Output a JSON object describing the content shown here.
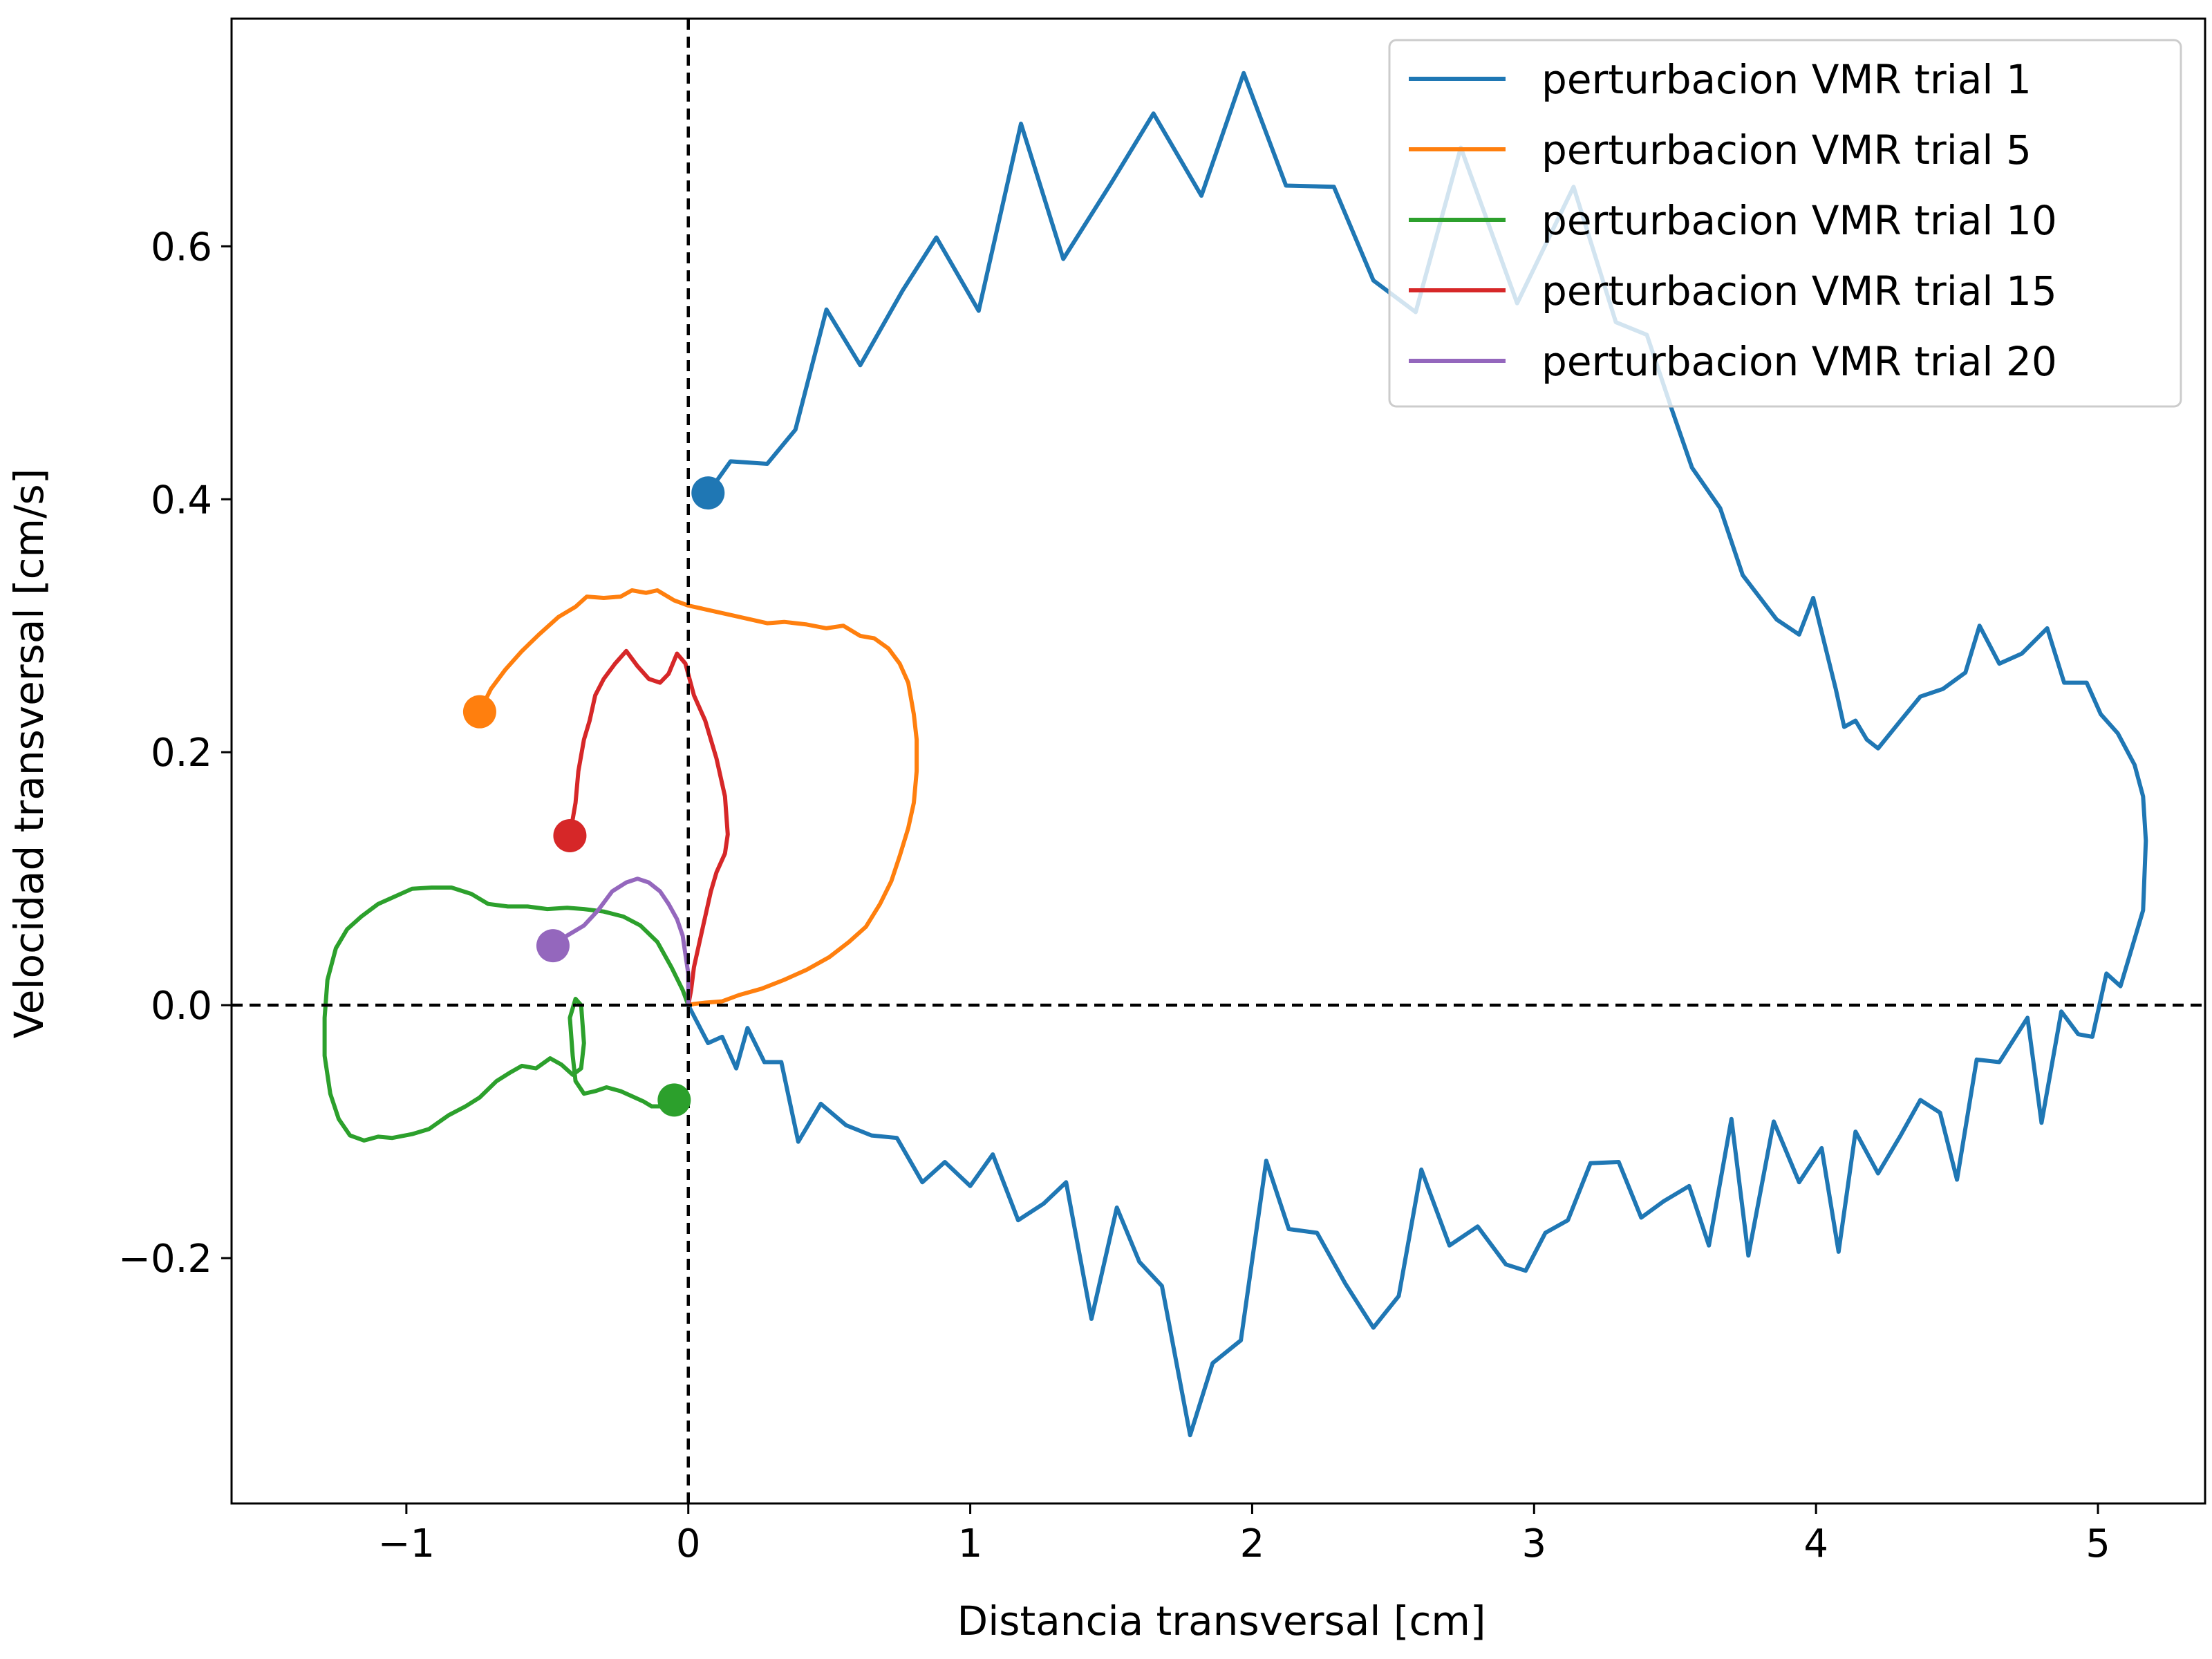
{
  "chart_data": {
    "type": "line",
    "title": "",
    "xlabel": "Distancia transversal [cm]",
    "ylabel": "Velocidad transversal [cm/s]",
    "xlim": [
      -1.62,
      5.38
    ],
    "ylim": [
      -0.394,
      0.78
    ],
    "xticks": [
      -1,
      0,
      1,
      2,
      3,
      4,
      5
    ],
    "xtick_labels": [
      "−1",
      "0",
      "1",
      "2",
      "3",
      "4",
      "5"
    ],
    "yticks": [
      -0.2,
      0.0,
      0.2,
      0.4,
      0.6
    ],
    "ytick_labels": [
      "−0.2",
      "0.0",
      "0.2",
      "0.4",
      "0.6"
    ],
    "grid": false,
    "legend_position": "top-right",
    "reference_lines": {
      "x": 0,
      "y": 0,
      "style": "dashed",
      "color": "#000000"
    },
    "series": [
      {
        "name": "perturbacion VMR trial 1",
        "color": "#1f77b4",
        "start_marker": [
          0.07,
          0.405
        ],
        "points": [
          [
            0.07,
            0.405
          ],
          [
            0.15,
            0.43
          ],
          [
            0.28,
            0.428
          ],
          [
            0.38,
            0.455
          ],
          [
            0.49,
            0.55
          ],
          [
            0.61,
            0.506
          ],
          [
            0.76,
            0.565
          ],
          [
            0.88,
            0.607
          ],
          [
            1.03,
            0.549
          ],
          [
            1.18,
            0.697
          ],
          [
            1.33,
            0.59
          ],
          [
            1.5,
            0.65
          ],
          [
            1.65,
            0.705
          ],
          [
            1.82,
            0.64
          ],
          [
            1.97,
            0.737
          ],
          [
            2.12,
            0.648
          ],
          [
            2.29,
            0.647
          ],
          [
            2.43,
            0.573
          ],
          [
            2.58,
            0.548
          ],
          [
            2.74,
            0.678
          ],
          [
            2.94,
            0.555
          ],
          [
            3.14,
            0.647
          ],
          [
            3.29,
            0.54
          ],
          [
            3.4,
            0.53
          ],
          [
            3.49,
            0.47
          ],
          [
            3.56,
            0.425
          ],
          [
            3.66,
            0.393
          ],
          [
            3.74,
            0.34
          ],
          [
            3.86,
            0.305
          ],
          [
            3.94,
            0.293
          ],
          [
            3.99,
            0.322
          ],
          [
            4.07,
            0.25
          ],
          [
            4.1,
            0.22
          ],
          [
            4.14,
            0.225
          ],
          [
            4.18,
            0.21
          ],
          [
            4.22,
            0.203
          ],
          [
            4.3,
            0.225
          ],
          [
            4.37,
            0.244
          ],
          [
            4.45,
            0.25
          ],
          [
            4.53,
            0.263
          ],
          [
            4.58,
            0.3
          ],
          [
            4.65,
            0.27
          ],
          [
            4.73,
            0.278
          ],
          [
            4.82,
            0.298
          ],
          [
            4.88,
            0.255
          ],
          [
            4.96,
            0.255
          ],
          [
            5.01,
            0.23
          ],
          [
            5.07,
            0.215
          ],
          [
            5.13,
            0.19
          ],
          [
            5.16,
            0.165
          ],
          [
            5.17,
            0.13
          ],
          [
            5.16,
            0.075
          ],
          [
            5.12,
            0.045
          ],
          [
            5.08,
            0.015
          ],
          [
            5.03,
            0.025
          ],
          [
            4.98,
            -0.025
          ],
          [
            4.93,
            -0.023
          ],
          [
            4.87,
            -0.005
          ],
          [
            4.8,
            -0.093
          ],
          [
            4.75,
            -0.01
          ],
          [
            4.65,
            -0.045
          ],
          [
            4.57,
            -0.043
          ],
          [
            4.5,
            -0.138
          ],
          [
            4.44,
            -0.085
          ],
          [
            4.37,
            -0.075
          ],
          [
            4.3,
            -0.103
          ],
          [
            4.22,
            -0.133
          ],
          [
            4.14,
            -0.1
          ],
          [
            4.08,
            -0.195
          ],
          [
            4.02,
            -0.113
          ],
          [
            3.94,
            -0.14
          ],
          [
            3.85,
            -0.092
          ],
          [
            3.76,
            -0.198
          ],
          [
            3.7,
            -0.09
          ],
          [
            3.62,
            -0.19
          ],
          [
            3.55,
            -0.143
          ],
          [
            3.46,
            -0.155
          ],
          [
            3.38,
            -0.168
          ],
          [
            3.3,
            -0.124
          ],
          [
            3.2,
            -0.125
          ],
          [
            3.12,
            -0.17
          ],
          [
            3.04,
            -0.18
          ],
          [
            2.97,
            -0.21
          ],
          [
            2.9,
            -0.205
          ],
          [
            2.8,
            -0.175
          ],
          [
            2.7,
            -0.19
          ],
          [
            2.6,
            -0.13
          ],
          [
            2.52,
            -0.23
          ],
          [
            2.43,
            -0.255
          ],
          [
            2.33,
            -0.22
          ],
          [
            2.23,
            -0.18
          ],
          [
            2.13,
            -0.177
          ],
          [
            2.05,
            -0.123
          ],
          [
            1.96,
            -0.265
          ],
          [
            1.86,
            -0.283
          ],
          [
            1.78,
            -0.34
          ],
          [
            1.68,
            -0.222
          ],
          [
            1.6,
            -0.203
          ],
          [
            1.52,
            -0.16
          ],
          [
            1.43,
            -0.248
          ],
          [
            1.34,
            -0.14
          ],
          [
            1.26,
            -0.157
          ],
          [
            1.17,
            -0.17
          ],
          [
            1.08,
            -0.118
          ],
          [
            1.0,
            -0.143
          ],
          [
            0.91,
            -0.124
          ],
          [
            0.83,
            -0.14
          ],
          [
            0.74,
            -0.105
          ],
          [
            0.65,
            -0.103
          ],
          [
            0.56,
            -0.095
          ],
          [
            0.47,
            -0.078
          ],
          [
            0.39,
            -0.108
          ],
          [
            0.33,
            -0.045
          ],
          [
            0.27,
            -0.045
          ],
          [
            0.21,
            -0.018
          ],
          [
            0.17,
            -0.05
          ],
          [
            0.12,
            -0.025
          ],
          [
            0.07,
            -0.03
          ],
          [
            0.0,
            0.0
          ]
        ]
      },
      {
        "name": "perturbacion VMR trial 5",
        "color": "#ff7f0e",
        "start_marker": [
          -0.74,
          0.232
        ],
        "points": [
          [
            -0.74,
            0.232
          ],
          [
            -0.7,
            0.25
          ],
          [
            -0.65,
            0.265
          ],
          [
            -0.59,
            0.28
          ],
          [
            -0.53,
            0.293
          ],
          [
            -0.46,
            0.307
          ],
          [
            -0.4,
            0.315
          ],
          [
            -0.36,
            0.323
          ],
          [
            -0.3,
            0.322
          ],
          [
            -0.24,
            0.323
          ],
          [
            -0.2,
            0.328
          ],
          [
            -0.15,
            0.326
          ],
          [
            -0.11,
            0.328
          ],
          [
            -0.05,
            0.32
          ],
          [
            0.0,
            0.316
          ],
          [
            0.08,
            0.312
          ],
          [
            0.16,
            0.308
          ],
          [
            0.22,
            0.305
          ],
          [
            0.28,
            0.302
          ],
          [
            0.34,
            0.303
          ],
          [
            0.42,
            0.301
          ],
          [
            0.49,
            0.298
          ],
          [
            0.55,
            0.3
          ],
          [
            0.61,
            0.292
          ],
          [
            0.66,
            0.29
          ],
          [
            0.71,
            0.282
          ],
          [
            0.75,
            0.27
          ],
          [
            0.78,
            0.255
          ],
          [
            0.8,
            0.23
          ],
          [
            0.81,
            0.21
          ],
          [
            0.81,
            0.185
          ],
          [
            0.8,
            0.16
          ],
          [
            0.78,
            0.14
          ],
          [
            0.75,
            0.118
          ],
          [
            0.72,
            0.098
          ],
          [
            0.68,
            0.08
          ],
          [
            0.63,
            0.062
          ],
          [
            0.57,
            0.05
          ],
          [
            0.5,
            0.038
          ],
          [
            0.42,
            0.028
          ],
          [
            0.34,
            0.02
          ],
          [
            0.26,
            0.013
          ],
          [
            0.18,
            0.008
          ],
          [
            0.12,
            0.003
          ],
          [
            0.06,
            0.002
          ],
          [
            0.02,
            0.001
          ],
          [
            0.0,
            0.0
          ]
        ]
      },
      {
        "name": "perturbacion VMR trial 10",
        "color": "#2ca02c",
        "start_marker": [
          -0.05,
          -0.075
        ],
        "points": [
          [
            -0.05,
            -0.075
          ],
          [
            -0.09,
            -0.08
          ],
          [
            -0.13,
            -0.08
          ],
          [
            -0.16,
            -0.076
          ],
          [
            -0.2,
            -0.072
          ],
          [
            -0.24,
            -0.068
          ],
          [
            -0.29,
            -0.065
          ],
          [
            -0.33,
            -0.068
          ],
          [
            -0.37,
            -0.07
          ],
          [
            -0.4,
            -0.06
          ],
          [
            -0.41,
            -0.04
          ],
          [
            -0.42,
            -0.01
          ],
          [
            -0.4,
            0.005
          ],
          [
            -0.38,
            0.0
          ],
          [
            -0.37,
            -0.03
          ],
          [
            -0.38,
            -0.05
          ],
          [
            -0.41,
            -0.055
          ],
          [
            -0.45,
            -0.047
          ],
          [
            -0.49,
            -0.042
          ],
          [
            -0.54,
            -0.05
          ],
          [
            -0.59,
            -0.048
          ],
          [
            -0.63,
            -0.053
          ],
          [
            -0.68,
            -0.06
          ],
          [
            -0.74,
            -0.073
          ],
          [
            -0.79,
            -0.08
          ],
          [
            -0.85,
            -0.087
          ],
          [
            -0.92,
            -0.098
          ],
          [
            -0.98,
            -0.102
          ],
          [
            -1.05,
            -0.105
          ],
          [
            -1.1,
            -0.104
          ],
          [
            -1.15,
            -0.107
          ],
          [
            -1.2,
            -0.103
          ],
          [
            -1.24,
            -0.09
          ],
          [
            -1.27,
            -0.07
          ],
          [
            -1.29,
            -0.04
          ],
          [
            -1.29,
            -0.01
          ],
          [
            -1.28,
            0.02
          ],
          [
            -1.25,
            0.045
          ],
          [
            -1.21,
            0.06
          ],
          [
            -1.16,
            0.07
          ],
          [
            -1.1,
            0.08
          ],
          [
            -1.04,
            0.086
          ],
          [
            -0.98,
            0.092
          ],
          [
            -0.91,
            0.093
          ],
          [
            -0.84,
            0.093
          ],
          [
            -0.77,
            0.088
          ],
          [
            -0.71,
            0.08
          ],
          [
            -0.64,
            0.078
          ],
          [
            -0.57,
            0.078
          ],
          [
            -0.5,
            0.076
          ],
          [
            -0.43,
            0.077
          ],
          [
            -0.37,
            0.076
          ],
          [
            -0.3,
            0.074
          ],
          [
            -0.23,
            0.07
          ],
          [
            -0.17,
            0.063
          ],
          [
            -0.11,
            0.05
          ],
          [
            -0.06,
            0.03
          ],
          [
            -0.02,
            0.012
          ],
          [
            0.0,
            0.0
          ]
        ]
      },
      {
        "name": "perturbacion VMR trial 15",
        "color": "#d62728",
        "start_marker": [
          -0.42,
          0.134
        ],
        "points": [
          [
            -0.42,
            0.134
          ],
          [
            -0.4,
            0.16
          ],
          [
            -0.39,
            0.185
          ],
          [
            -0.37,
            0.21
          ],
          [
            -0.35,
            0.225
          ],
          [
            -0.33,
            0.245
          ],
          [
            -0.3,
            0.258
          ],
          [
            -0.26,
            0.27
          ],
          [
            -0.22,
            0.28
          ],
          [
            -0.18,
            0.268
          ],
          [
            -0.14,
            0.258
          ],
          [
            -0.1,
            0.255
          ],
          [
            -0.07,
            0.262
          ],
          [
            -0.04,
            0.278
          ],
          [
            -0.01,
            0.27
          ],
          [
            0.02,
            0.245
          ],
          [
            0.06,
            0.225
          ],
          [
            0.1,
            0.195
          ],
          [
            0.13,
            0.165
          ],
          [
            0.14,
            0.135
          ],
          [
            0.13,
            0.12
          ],
          [
            0.1,
            0.105
          ],
          [
            0.08,
            0.09
          ],
          [
            0.06,
            0.07
          ],
          [
            0.04,
            0.05
          ],
          [
            0.02,
            0.03
          ],
          [
            0.01,
            0.012
          ],
          [
            0.0,
            0.0
          ]
        ]
      },
      {
        "name": "perturbacion VMR trial 20",
        "color": "#9467bd",
        "start_marker": [
          -0.48,
          0.047
        ],
        "points": [
          [
            -0.48,
            0.047
          ],
          [
            -0.43,
            0.055
          ],
          [
            -0.37,
            0.063
          ],
          [
            -0.32,
            0.075
          ],
          [
            -0.27,
            0.09
          ],
          [
            -0.22,
            0.097
          ],
          [
            -0.18,
            0.1
          ],
          [
            -0.14,
            0.097
          ],
          [
            -0.1,
            0.09
          ],
          [
            -0.07,
            0.08
          ],
          [
            -0.04,
            0.068
          ],
          [
            -0.02,
            0.055
          ],
          [
            -0.01,
            0.04
          ],
          [
            0.0,
            0.025
          ],
          [
            0.0,
            0.01
          ],
          [
            0.0,
            0.0
          ]
        ]
      }
    ]
  }
}
